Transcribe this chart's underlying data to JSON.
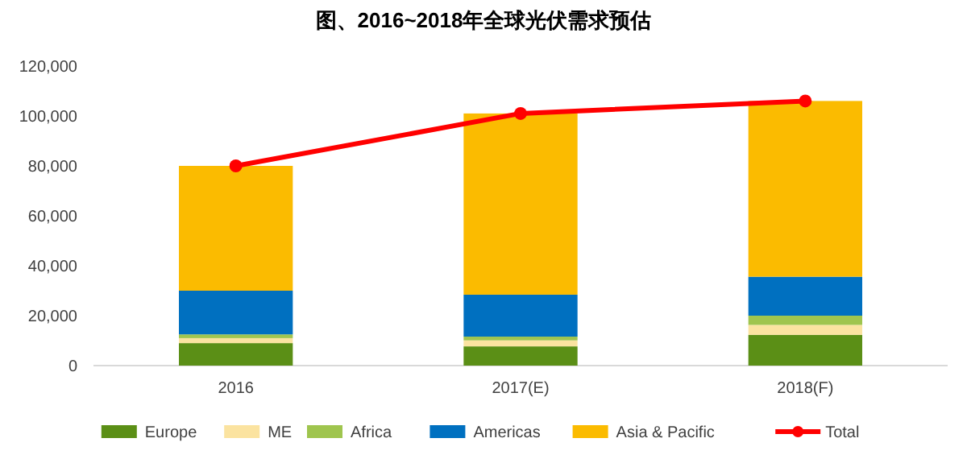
{
  "chart_data": {
    "type": "bar",
    "title": "图、2016~2018年全球光伏需求预估",
    "categories": [
      "2016",
      "2017(E)",
      "2018(F)"
    ],
    "stacked": true,
    "ylim": [
      0,
      120000
    ],
    "yticks": [
      {
        "value": 0,
        "label": "0"
      },
      {
        "value": 20000,
        "label": "20,000"
      },
      {
        "value": 40000,
        "label": "40,000"
      },
      {
        "value": 60000,
        "label": "60,000"
      },
      {
        "value": 80000,
        "label": "80,000"
      },
      {
        "value": 100000,
        "label": "100,000"
      },
      {
        "value": 120000,
        "label": "120,000"
      }
    ],
    "legend": "bottom",
    "marker": "circle",
    "series": [
      {
        "name": "Europe",
        "color": "#5b8f16",
        "values": [
          9000,
          7700,
          12300
        ]
      },
      {
        "name": "ME",
        "color": "#fbe3a0",
        "values": [
          2000,
          2400,
          4000
        ]
      },
      {
        "name": "Africa",
        "color": "#9fc54e",
        "values": [
          1500,
          1500,
          3700
        ]
      },
      {
        "name": "Americas",
        "color": "#0070c0",
        "values": [
          17500,
          16800,
          15600
        ]
      },
      {
        "name": "Asia & Pacific",
        "color": "#fbbb00",
        "values": [
          50000,
          72600,
          70400
        ]
      },
      {
        "name": "Total",
        "type": "line",
        "color": "#ff0000",
        "values": [
          80000,
          101000,
          106000
        ]
      }
    ]
  }
}
